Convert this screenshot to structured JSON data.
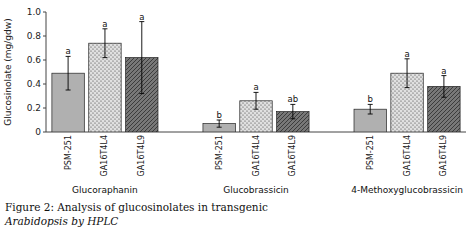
{
  "chart_data": {
    "type": "bar",
    "ylabel": "Glucosinolate (mg/gdw)",
    "caption": [
      "Figure 2:  Analysis of glucosinolates in transgenic",
      "Arabidopsis by HPLC"
    ],
    "categories": [
      "Glucoraphanin",
      "Glucobrassicin",
      "4-Methoxyglucobrassicin"
    ],
    "series": [
      {
        "name": "PSM-251",
        "color": "#b0b0b0",
        "values": [
          0.49,
          0.07,
          0.19
        ],
        "errors": [
          0.14,
          0.03,
          0.04
        ],
        "sig_labels": [
          "a",
          "b",
          "b"
        ]
      },
      {
        "name": "GA16T4L4",
        "color": "#e0e0e0",
        "values": [
          0.74,
          0.26,
          0.49
        ],
        "errors": [
          0.12,
          0.07,
          0.12
        ],
        "sig_labels": [
          "a",
          "a",
          "a"
        ]
      },
      {
        "name": "GA16T4L9",
        "color": "#787878",
        "values": [
          0.62,
          0.17,
          0.38
        ],
        "errors": [
          0.3,
          0.06,
          0.09
        ],
        "sig_labels": [
          "a",
          "ab",
          "a"
        ]
      }
    ],
    "ylim": [
      0,
      1.0
    ],
    "yticks": [
      0,
      0.2,
      0.4,
      0.6,
      0.8,
      {
        "value": 1.0,
        "label": "1.0"
      }
    ],
    "grid": false
  }
}
